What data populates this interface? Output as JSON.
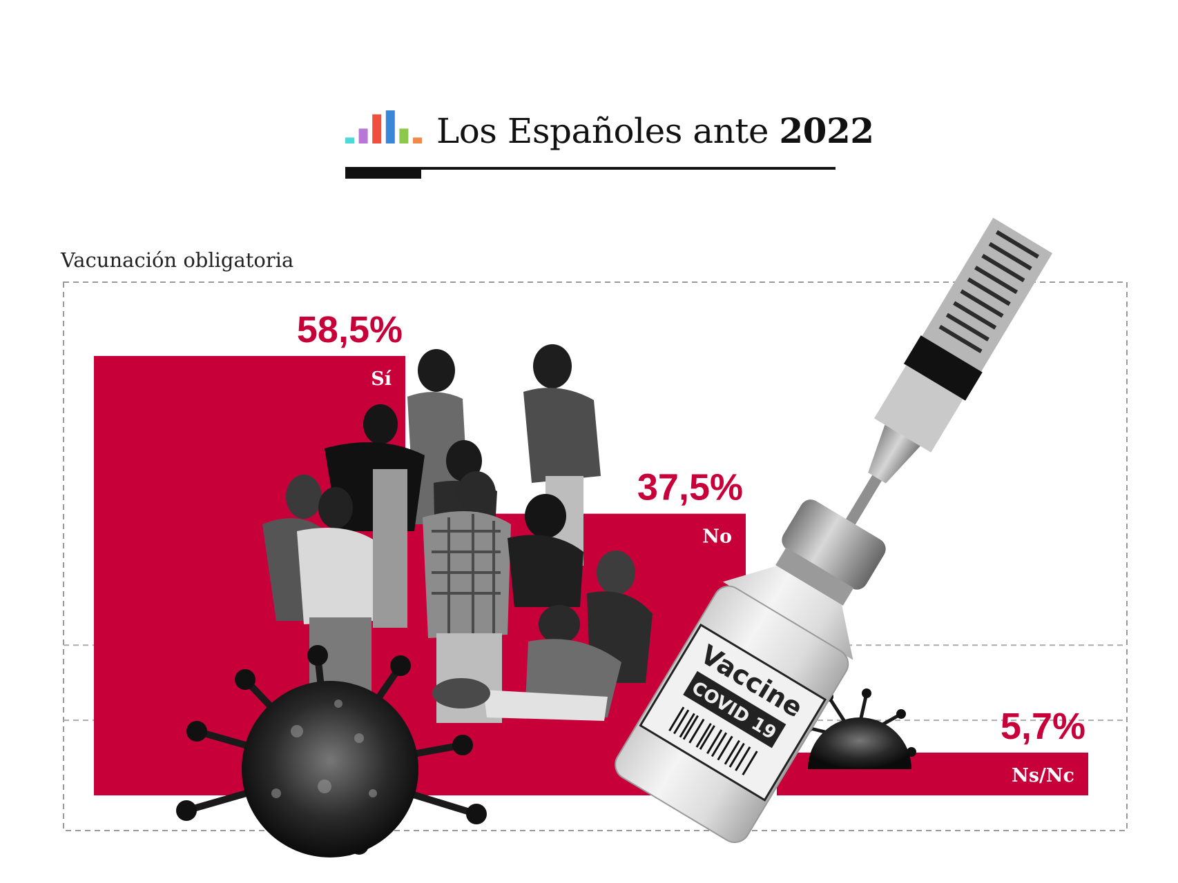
{
  "header": {
    "title_regular": "Los Españoles ante ",
    "title_bold": "2022",
    "logo_colors": [
      "#4fd8d8",
      "#b877d6",
      "#ef4f3c",
      "#3a86d9",
      "#8cc84b",
      "#f08a4b"
    ],
    "logo_values": [
      0.18,
      0.45,
      0.88,
      1.0,
      0.45,
      0.18
    ]
  },
  "accent_color": "#c8003a",
  "chart_data": {
    "type": "bar",
    "title": "Vacunación obligatoria",
    "categories": [
      "Sí",
      "No",
      "Ns/Nc"
    ],
    "values": [
      58.5,
      37.5,
      5.7
    ],
    "value_labels": [
      "58,5%",
      "37,5%",
      "5,7%"
    ],
    "ylim": [
      0,
      58.5
    ],
    "gridlines": [
      20,
      10
    ],
    "xlabel": "",
    "ylabel": ""
  },
  "illustrations": {
    "vaccine_label": "Vaccine",
    "vaccine_sublabel": "COVID 19"
  }
}
